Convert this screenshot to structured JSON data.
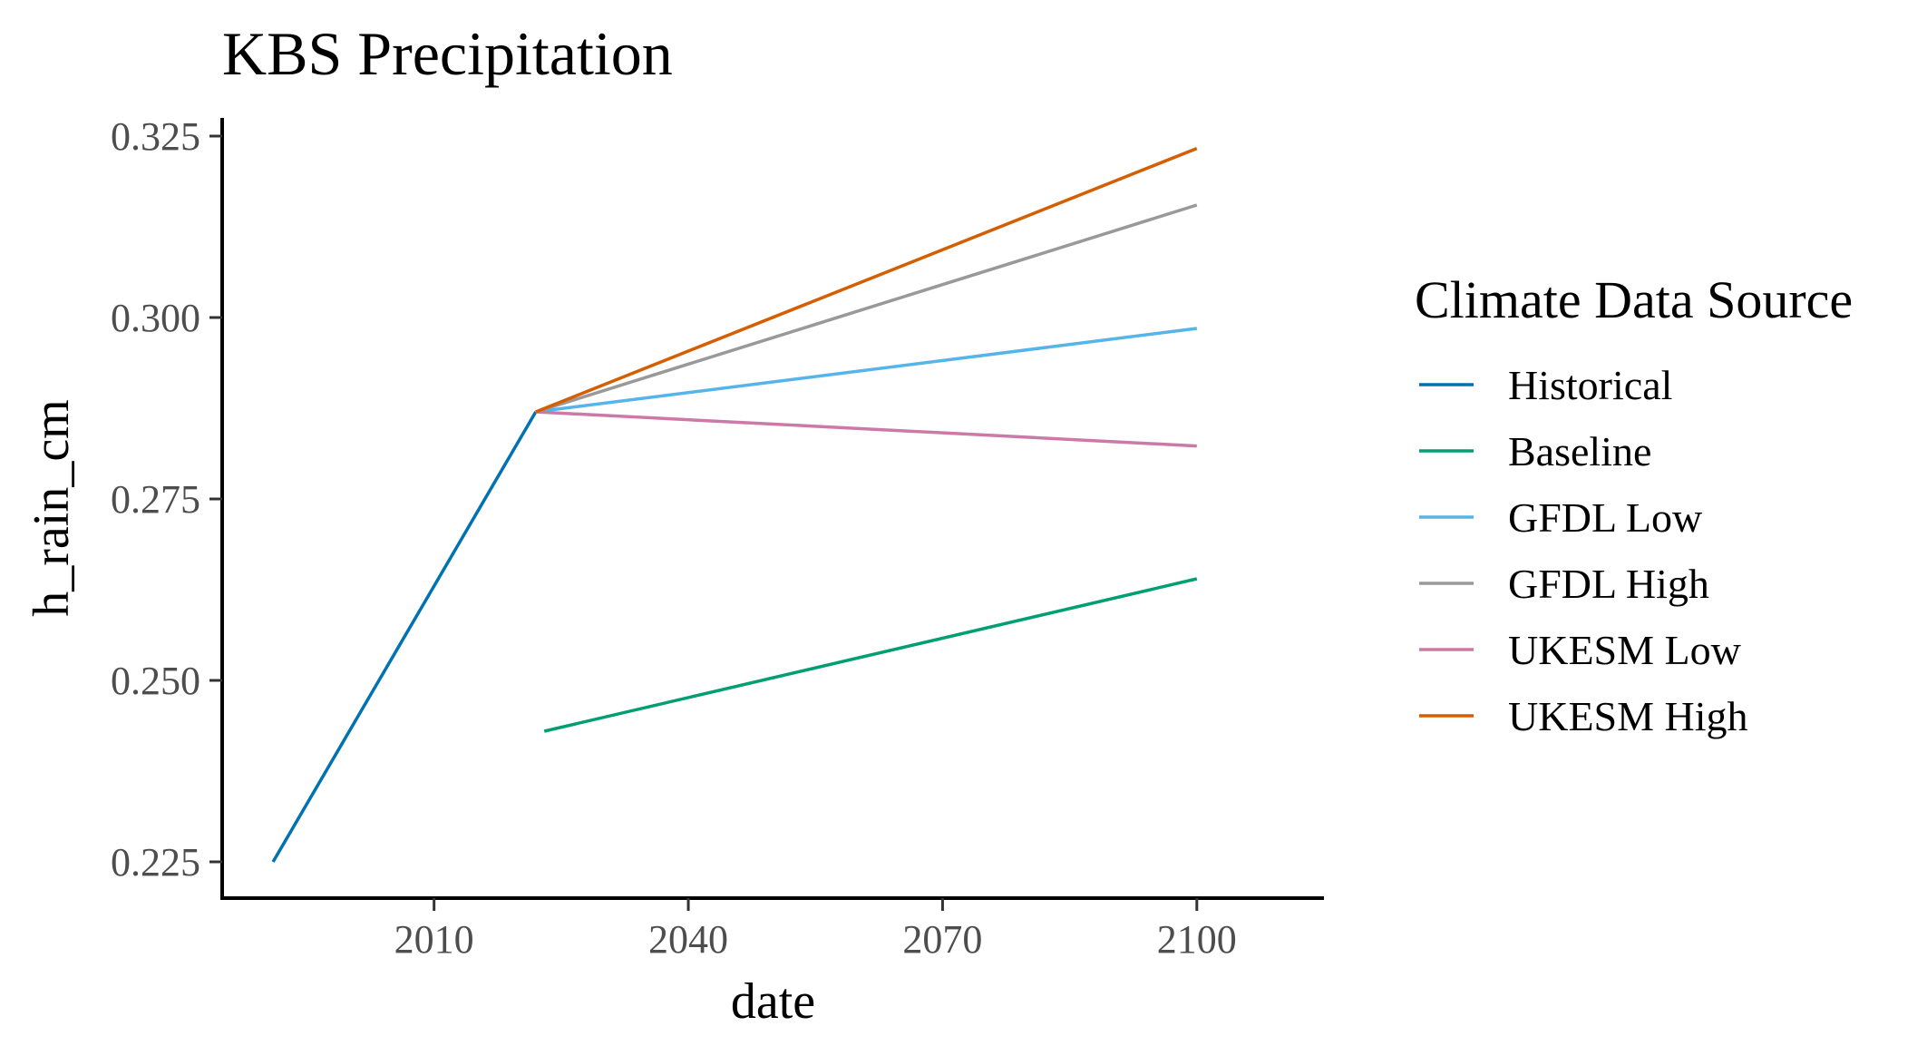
{
  "chart_data": {
    "type": "line",
    "title": "KBS Precipitation",
    "xlabel": "date",
    "ylabel": "h_rain_cm",
    "x_is_year": true,
    "xlim": [
      1985,
      2115
    ],
    "ylim": [
      0.22,
      0.3275
    ],
    "xticks": [
      2010,
      2040,
      2070,
      2100
    ],
    "yticks": [
      0.225,
      0.25,
      0.275,
      0.3,
      0.325
    ],
    "ytick_labels": [
      "0.225",
      "0.250",
      "0.275",
      "0.300",
      "0.325"
    ],
    "grid": false,
    "legend": {
      "title": "Climate Data Source",
      "position": "right"
    },
    "series": [
      {
        "name": "Historical",
        "color": "#0072B2",
        "points": [
          [
            1991,
            0.225
          ],
          [
            2022,
            0.287
          ]
        ]
      },
      {
        "name": "Baseline",
        "color": "#009E73",
        "points": [
          [
            2023,
            0.243
          ],
          [
            2100,
            0.264
          ]
        ]
      },
      {
        "name": "GFDL Low",
        "color": "#56B4E9",
        "points": [
          [
            2022,
            0.287
          ],
          [
            2100,
            0.2985
          ]
        ]
      },
      {
        "name": "GFDL High",
        "color": "#999999",
        "points": [
          [
            2022,
            0.287
          ],
          [
            2100,
            0.3155
          ]
        ]
      },
      {
        "name": "UKESM Low",
        "color": "#CC79A7",
        "points": [
          [
            2022,
            0.287
          ],
          [
            2100,
            0.2823
          ]
        ]
      },
      {
        "name": "UKESM High",
        "color": "#D55E00",
        "points": [
          [
            2022,
            0.287
          ],
          [
            2100,
            0.3233
          ]
        ]
      }
    ]
  }
}
